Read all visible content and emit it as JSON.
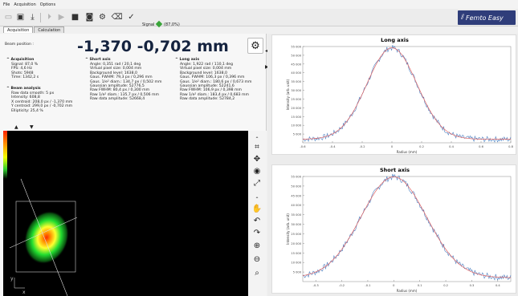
{
  "menu": [
    "File",
    "Acquisition",
    "Options"
  ],
  "toolbar": {
    "signal_label": "Signal",
    "signal_value": "(87,0%)"
  },
  "logo": {
    "text": "Femto Easy"
  },
  "tabs": [
    {
      "label": "Acquisition"
    },
    {
      "label": "Calculation"
    }
  ],
  "beam_position": {
    "label": "Beam position :",
    "value": "-1,370 -0,702 mm"
  },
  "acquisition": {
    "title": "Acquisition",
    "lines": [
      "Signal: 87,0 %",
      "FPS: 4,6 Hz",
      "Shots: 5948",
      "Time: 1342,2 s"
    ]
  },
  "beam_analysis": {
    "title": "Beam analysis",
    "lines": [
      "Raw data smooth: 5 px",
      "Intensity: 608,8",
      "X centroid: 208,0 px / -1,370 mm",
      "Y centroid: 299,0 px / -0,702 mm",
      "Ellipticity: 25,4 %"
    ]
  },
  "short_axis": {
    "title": "Short axis",
    "lines": [
      "Angle: 0,351 rad / 20,1 deg",
      "Virtual pixel size: 0,004 mm",
      "Background level: 1638,0",
      "Gaus. FWHM: 79,3 px / 0,296 mm",
      "Gaus. 1/e² diam.: 134,7 px / 0,502 mm",
      "Gaussian amplitude: 52776,5",
      "Raw FWHM: 80,4 px / 0,300 mm",
      "Raw 1/e² diam.: 135,7 px / 0,506 mm",
      "Raw data amplitude: 52668,4"
    ]
  },
  "long_axis": {
    "title": "Long axis",
    "lines": [
      "Angle: 1,922 rad / 110,1 deg",
      "Virtual pixel size: 0,004 mm",
      "Background level: 1638,0",
      "Gaus. FWHM: 106,3 px / 0,396 mm",
      "Gaus. 1/e² diam.: 180,6 px / 0,673 mm",
      "Gaussian amplitude: 52241,6",
      "Raw FWHM: 106,9 px / 0,398 mm",
      "Raw 1/e² diam.: 183,4 px / 0,683 mm",
      "Raw data amplitude: 52784,2"
    ]
  },
  "camera": {
    "axis_y": "y",
    "axis_x": "x"
  },
  "colors": {
    "accent": "#2f3d7a",
    "fit": "#e06060",
    "raw": "#4a7ec0",
    "signal": "#3aa53a"
  },
  "chart_data": [
    {
      "type": "line",
      "title": "Long axis",
      "xlabel": "Radius (mm)",
      "ylabel": "Intensity (arb. unit)",
      "xlim": [
        -0.6,
        0.8
      ],
      "ylim": [
        0,
        55000
      ],
      "xticks": [
        "-0.6",
        "-0.4",
        "-0.2",
        "0",
        "0.2",
        "0.4",
        "0.6",
        "0.8"
      ],
      "yticks": [
        "5 000",
        "10 000",
        "15 000",
        "20 000",
        "25 000",
        "30 000",
        "35 000",
        "40 000",
        "45 000",
        "50 000",
        "55 000"
      ],
      "gaussian": {
        "center": 0.0,
        "fwhm": 0.396,
        "amplitude": 52241.6,
        "offset": 2000
      },
      "series": [
        {
          "color": "#4a7ec0",
          "kind": "raw"
        },
        {
          "color": "#e06060",
          "kind": "fit"
        }
      ]
    },
    {
      "type": "line",
      "title": "Short axis",
      "xlabel": "Radius (mm)",
      "ylabel": "Intensity (arb. unit)",
      "xlim": [
        -0.35,
        0.45
      ],
      "ylim": [
        0,
        55000
      ],
      "xticks": [
        "-0.3",
        "-0.2",
        "-0.1",
        "0",
        "0.1",
        "0.2",
        "0.3",
        "0.4"
      ],
      "yticks": [
        "5 000",
        "10 000",
        "15 000",
        "20 000",
        "25 000",
        "30 000",
        "35 000",
        "40 000",
        "45 000",
        "50 000",
        "55 000"
      ],
      "gaussian": {
        "center": 0.0,
        "fwhm": 0.296,
        "amplitude": 52776.5,
        "offset": 2000
      },
      "series": [
        {
          "color": "#4a7ec0",
          "kind": "raw"
        },
        {
          "color": "#e06060",
          "kind": "fit"
        }
      ]
    }
  ]
}
